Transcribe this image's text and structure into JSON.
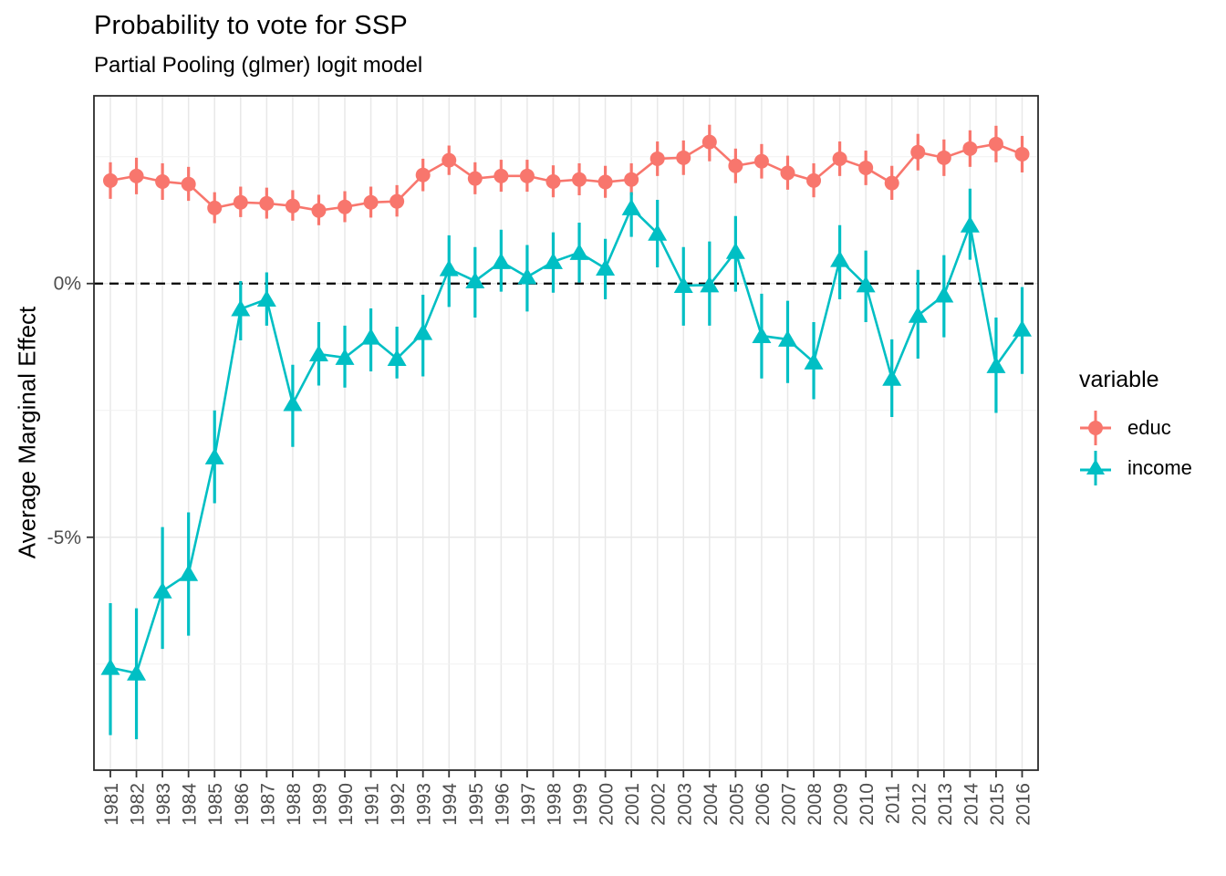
{
  "page": {
    "title": "Probability to vote for SSP",
    "subtitle": "Partial Pooling (glmer) logit model"
  },
  "chart_data": {
    "type": "line",
    "subtype": "pointrange-with-error-bars",
    "title": "Probability to vote for SSP",
    "subtitle": "Partial Pooling (glmer) logit model",
    "xlabel": "",
    "ylabel": "Average Marginal Effect",
    "x": [
      1981,
      1982,
      1983,
      1984,
      1985,
      1986,
      1987,
      1988,
      1989,
      1990,
      1991,
      1992,
      1993,
      1994,
      1995,
      1996,
      1997,
      1998,
      1999,
      2000,
      2001,
      2002,
      2003,
      2004,
      2005,
      2006,
      2007,
      2008,
      2009,
      2010,
      2011,
      2012,
      2013,
      2014,
      2015,
      2016
    ],
    "ylim": [
      -9.59,
      3.7
    ],
    "y_ticks": [
      {
        "value": 0,
        "label": "0%"
      },
      {
        "value": -5,
        "label": "-5%"
      }
    ],
    "y_minor_gridlines": [
      2.5,
      -2.5,
      -7.5
    ],
    "grid": "on",
    "reference_line": {
      "y": 0,
      "style": "dashed",
      "color": "#000000"
    },
    "legend": {
      "title": "variable",
      "position": "right"
    },
    "colors": {
      "educ": "#F8766D",
      "income": "#00BFC4",
      "grid_major": "#E8E8E8",
      "grid_minor": "#F1F1F1",
      "axis_text": "#4D4D4D",
      "panel_border": "#2B2B2B"
    },
    "series": [
      {
        "name": "educ",
        "marker": "circle",
        "color": "#F8766D",
        "values": [
          2.03,
          2.12,
          2.01,
          1.96,
          1.49,
          1.6,
          1.58,
          1.53,
          1.44,
          1.51,
          1.6,
          1.62,
          2.14,
          2.43,
          2.07,
          2.12,
          2.12,
          2.01,
          2.05,
          2.0,
          2.05,
          2.46,
          2.48,
          2.79,
          2.32,
          2.41,
          2.18,
          2.03,
          2.46,
          2.28,
          1.98,
          2.59,
          2.48,
          2.66,
          2.75,
          2.55
        ],
        "ci_low": [
          1.67,
          1.76,
          1.65,
          1.63,
          1.19,
          1.31,
          1.28,
          1.24,
          1.15,
          1.21,
          1.3,
          1.32,
          1.82,
          2.14,
          1.76,
          1.81,
          1.81,
          1.7,
          1.74,
          1.69,
          1.74,
          2.12,
          2.14,
          2.41,
          1.98,
          2.07,
          1.85,
          1.7,
          2.12,
          1.94,
          1.65,
          2.23,
          2.12,
          2.3,
          2.39,
          2.19
        ],
        "ci_high": [
          2.39,
          2.48,
          2.37,
          2.3,
          1.8,
          1.91,
          1.89,
          1.84,
          1.75,
          1.82,
          1.91,
          1.94,
          2.46,
          2.72,
          2.39,
          2.44,
          2.44,
          2.33,
          2.37,
          2.32,
          2.37,
          2.8,
          2.82,
          3.13,
          2.66,
          2.75,
          2.52,
          2.37,
          2.8,
          2.62,
          2.32,
          2.95,
          2.84,
          3.02,
          3.11,
          2.91
        ]
      },
      {
        "name": "income",
        "marker": "triangle",
        "color": "#00BFC4",
        "values": [
          -7.57,
          -7.68,
          -6.06,
          -5.72,
          -3.42,
          -0.5,
          -0.31,
          -2.37,
          -1.39,
          -1.46,
          -1.06,
          -1.48,
          -0.97,
          0.29,
          0.05,
          0.43,
          0.13,
          0.43,
          0.61,
          0.3,
          1.49,
          0.99,
          -0.04,
          -0.03,
          0.63,
          -1.03,
          -1.1,
          -1.55,
          0.47,
          -0.03,
          -1.87,
          -0.63,
          -0.23,
          1.15,
          -1.62,
          -0.9
        ],
        "ci_low": [
          -8.9,
          -8.98,
          -7.2,
          -6.94,
          -4.33,
          -1.12,
          -0.83,
          -3.22,
          -2.01,
          -2.05,
          -1.73,
          -1.87,
          -1.83,
          -0.46,
          -0.67,
          -0.16,
          -0.55,
          -0.18,
          0.02,
          -0.31,
          0.92,
          0.32,
          -0.83,
          -0.83,
          -0.16,
          -1.87,
          -1.96,
          -2.28,
          -0.31,
          -0.76,
          -2.63,
          -1.48,
          -1.06,
          0.47,
          -2.55,
          -1.78
        ],
        "ci_high": [
          -6.3,
          -6.4,
          -4.8,
          -4.51,
          -2.5,
          0.05,
          0.22,
          -1.6,
          -0.76,
          -0.83,
          -0.49,
          -0.85,
          -0.22,
          0.95,
          0.72,
          1.06,
          0.76,
          1.01,
          1.2,
          0.88,
          1.8,
          1.65,
          0.72,
          0.83,
          1.33,
          -0.2,
          -0.34,
          -0.76,
          1.15,
          0.65,
          -1.1,
          0.27,
          0.56,
          1.87,
          -0.67,
          -0.07
        ]
      }
    ]
  }
}
